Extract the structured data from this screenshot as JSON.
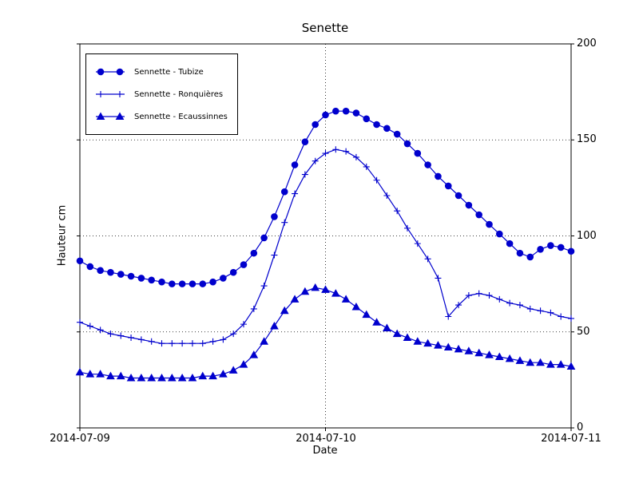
{
  "chart_data": {
    "type": "line",
    "title": "Senette",
    "xlabel": "Date",
    "ylabel": "Hauteur cm",
    "color": "#0000cd",
    "grid": {
      "style": "dotted",
      "horizontal_values": [
        50,
        100,
        150
      ],
      "vertical_hours": [
        24
      ]
    },
    "legend_position": "upper-left",
    "ylim": [
      0,
      200
    ],
    "xlim_hours": [
      0,
      48
    ],
    "yticks": [
      0,
      50,
      100,
      150,
      200
    ],
    "ytick_labels": [
      "0",
      "50",
      "100",
      "150",
      "200"
    ],
    "xtick_hours": [
      0,
      24,
      48
    ],
    "xtick_labels": [
      "2014-07-09",
      "2014-07-10",
      "2014-07-11"
    ],
    "x_hours_start": 0,
    "x_hours_step": 1,
    "series": [
      {
        "name": "Sennette - Tubize",
        "marker": "circle",
        "values": [
          87,
          84,
          82,
          81,
          80,
          79,
          78,
          77,
          76,
          75,
          75,
          75,
          75,
          76,
          78,
          81,
          85,
          91,
          99,
          110,
          123,
          137,
          149,
          158,
          163,
          165,
          165,
          164,
          161,
          158,
          156,
          153,
          148,
          143,
          137,
          131,
          126,
          121,
          116,
          111,
          106,
          101,
          96,
          91,
          89,
          93,
          95,
          94,
          92
        ]
      },
      {
        "name": "Sennette - Ronquières",
        "marker": "plus",
        "values": [
          55,
          53,
          51,
          49,
          48,
          47,
          46,
          45,
          44,
          44,
          44,
          44,
          44,
          45,
          46,
          49,
          54,
          62,
          74,
          90,
          107,
          122,
          132,
          139,
          143,
          145,
          144,
          141,
          136,
          129,
          121,
          113,
          104,
          96,
          88,
          78,
          58,
          64,
          69,
          70,
          69,
          67,
          65,
          64,
          62,
          61,
          60,
          58,
          57
        ]
      },
      {
        "name": "Sennette - Ecaussinnes",
        "marker": "triangle",
        "values": [
          29,
          28,
          28,
          27,
          27,
          26,
          26,
          26,
          26,
          26,
          26,
          26,
          27,
          27,
          28,
          30,
          33,
          38,
          45,
          53,
          61,
          67,
          71,
          73,
          72,
          70,
          67,
          63,
          59,
          55,
          52,
          49,
          47,
          45,
          44,
          43,
          42,
          41,
          40,
          39,
          38,
          37,
          36,
          35,
          34,
          34,
          33,
          33,
          32
        ]
      }
    ]
  }
}
